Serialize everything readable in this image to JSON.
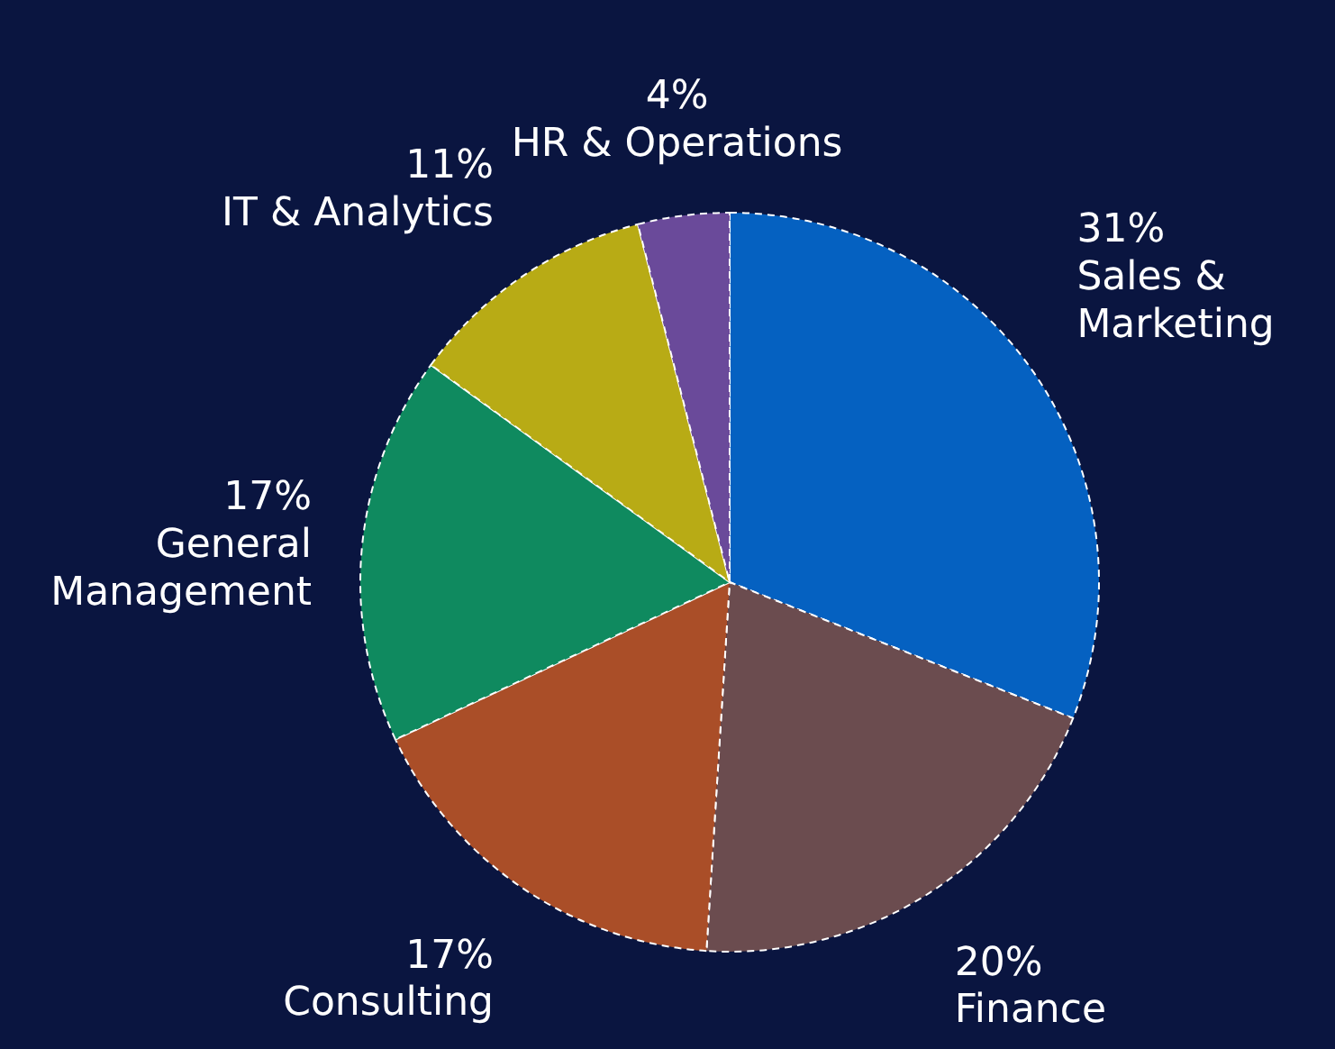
{
  "chart_data": {
    "type": "pie",
    "categories": [
      "Sales & Marketing",
      "Finance",
      "Consulting",
      "General Management",
      "IT & Analytics",
      "HR & Operations"
    ],
    "values": [
      31,
      20,
      17,
      17,
      11,
      4
    ],
    "value_labels": [
      "31%",
      "20%",
      "17%",
      "17%",
      "11%",
      "4%"
    ],
    "colors": [
      "#0561c1",
      "#6b4c4f",
      "#aa4e28",
      "#0f8a5f",
      "#b8ab15",
      "#6a4a9a"
    ]
  }
}
